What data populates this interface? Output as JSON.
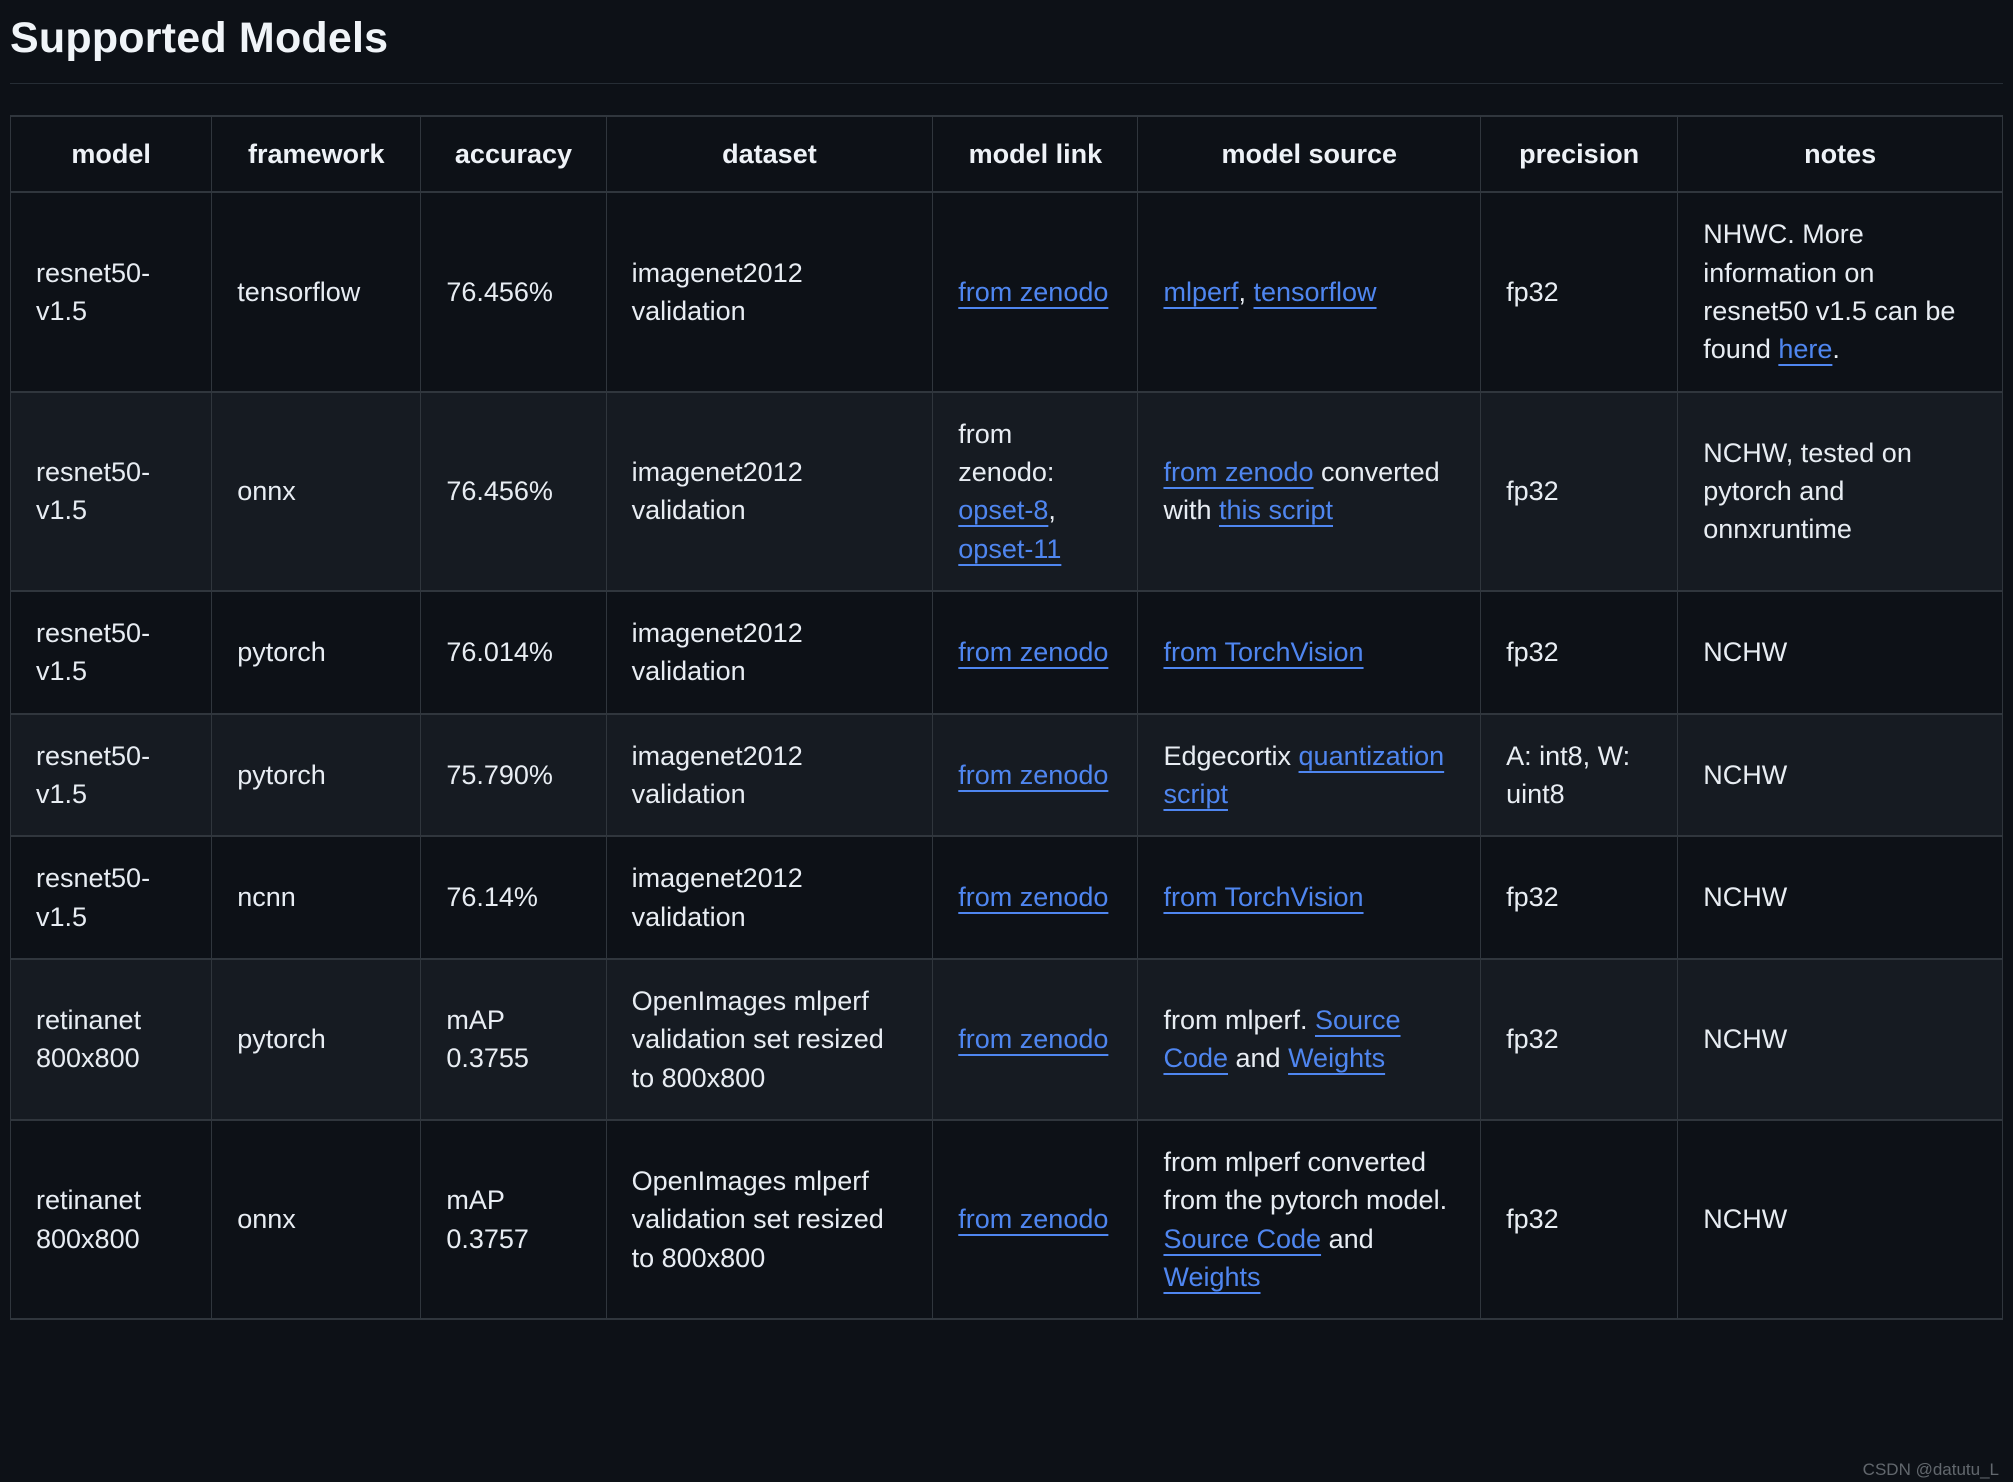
{
  "page": {
    "title": "Supported Models",
    "watermark": "CSDN @datutu_L"
  },
  "colors": {
    "background": "#0d1117",
    "row_alt_background": "#161b22",
    "border": "#30363d",
    "text": "#e8edf3",
    "link": "#4f86f0",
    "watermark": "#9aa0a6"
  },
  "table": {
    "headers": [
      "model",
      "framework",
      "accuracy",
      "dataset",
      "model link",
      "model source",
      "precision",
      "notes"
    ],
    "col_widths": [
      "10.1%",
      "10.5%",
      "9.3%",
      "16.4%",
      "10.3%",
      "17.2%",
      "9.9%",
      "16.3%"
    ],
    "rows": [
      [
        [
          {
            "t": "resnet50-v1.5"
          }
        ],
        [
          {
            "t": "tensorflow"
          }
        ],
        [
          {
            "t": "76.456%"
          }
        ],
        [
          {
            "t": "imagenet2012 validation"
          }
        ],
        [
          {
            "t": "from zenodo",
            "link": true
          }
        ],
        [
          {
            "t": "mlperf",
            "link": true
          },
          {
            "t": ", "
          },
          {
            "t": "tensorflow",
            "link": true
          }
        ],
        [
          {
            "t": "fp32"
          }
        ],
        [
          {
            "t": "NHWC. More information on resnet50 v1.5 can be found "
          },
          {
            "t": "here",
            "link": true
          },
          {
            "t": "."
          }
        ]
      ],
      [
        [
          {
            "t": "resnet50-v1.5"
          }
        ],
        [
          {
            "t": "onnx"
          }
        ],
        [
          {
            "t": "76.456%"
          }
        ],
        [
          {
            "t": "imagenet2012 validation"
          }
        ],
        [
          {
            "t": "from zenodo: "
          },
          {
            "t": "opset-8",
            "link": true
          },
          {
            "t": ", "
          },
          {
            "t": "opset-11",
            "link": true
          }
        ],
        [
          {
            "t": "from zenodo",
            "link": true
          },
          {
            "t": " converted with "
          },
          {
            "t": "this script",
            "link": true
          }
        ],
        [
          {
            "t": "fp32"
          }
        ],
        [
          {
            "t": "NCHW, tested on pytorch and onnxruntime"
          }
        ]
      ],
      [
        [
          {
            "t": "resnet50-v1.5"
          }
        ],
        [
          {
            "t": "pytorch"
          }
        ],
        [
          {
            "t": "76.014%"
          }
        ],
        [
          {
            "t": "imagenet2012 validation"
          }
        ],
        [
          {
            "t": "from zenodo",
            "link": true
          }
        ],
        [
          {
            "t": "from TorchVision",
            "link": true
          }
        ],
        [
          {
            "t": "fp32"
          }
        ],
        [
          {
            "t": "NCHW"
          }
        ]
      ],
      [
        [
          {
            "t": "resnet50-v1.5"
          }
        ],
        [
          {
            "t": "pytorch"
          }
        ],
        [
          {
            "t": "75.790%"
          }
        ],
        [
          {
            "t": "imagenet2012 validation"
          }
        ],
        [
          {
            "t": "from zenodo",
            "link": true
          }
        ],
        [
          {
            "t": "Edgecortix "
          },
          {
            "t": "quantization script",
            "link": true
          }
        ],
        [
          {
            "t": "A: int8, W: uint8"
          }
        ],
        [
          {
            "t": "NCHW"
          }
        ]
      ],
      [
        [
          {
            "t": "resnet50-v1.5"
          }
        ],
        [
          {
            "t": "ncnn"
          }
        ],
        [
          {
            "t": "76.14%"
          }
        ],
        [
          {
            "t": "imagenet2012 validation"
          }
        ],
        [
          {
            "t": "from zenodo",
            "link": true
          }
        ],
        [
          {
            "t": "from TorchVision",
            "link": true
          }
        ],
        [
          {
            "t": "fp32"
          }
        ],
        [
          {
            "t": "NCHW"
          }
        ]
      ],
      [
        [
          {
            "t": "retinanet 800x800"
          }
        ],
        [
          {
            "t": "pytorch"
          }
        ],
        [
          {
            "t": "mAP 0.3755"
          }
        ],
        [
          {
            "t": "OpenImages mlperf validation set resized to 800x800"
          }
        ],
        [
          {
            "t": "from zenodo",
            "link": true
          }
        ],
        [
          {
            "t": "from mlperf. "
          },
          {
            "t": "Source Code",
            "link": true
          },
          {
            "t": " and "
          },
          {
            "t": "Weights",
            "link": true
          }
        ],
        [
          {
            "t": "fp32"
          }
        ],
        [
          {
            "t": "NCHW"
          }
        ]
      ],
      [
        [
          {
            "t": "retinanet 800x800"
          }
        ],
        [
          {
            "t": "onnx"
          }
        ],
        [
          {
            "t": "mAP 0.3757"
          }
        ],
        [
          {
            "t": "OpenImages mlperf validation set resized to 800x800"
          }
        ],
        [
          {
            "t": "from zenodo",
            "link": true
          }
        ],
        [
          {
            "t": "from mlperf converted from the pytorch model. "
          },
          {
            "t": "Source Code",
            "link": true
          },
          {
            "t": " and "
          },
          {
            "t": "Weights",
            "link": true
          }
        ],
        [
          {
            "t": "fp32"
          }
        ],
        [
          {
            "t": "NCHW"
          }
        ]
      ]
    ]
  }
}
